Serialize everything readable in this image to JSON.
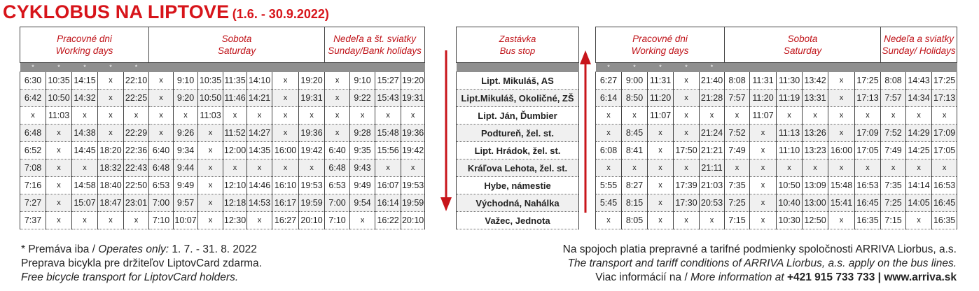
{
  "title": {
    "main": "CYKLOBUS NA LIPTOVE",
    "sub": "(1.6. - 30.9.2022)"
  },
  "colors": {
    "accent": "#d7141a",
    "header_bar": "#8f8f8f"
  },
  "left": {
    "groups": [
      {
        "sk": "Pracovné dni",
        "en": "Working days",
        "span": 5
      },
      {
        "sk": "Sobota",
        "en": "Saturday",
        "span": 7
      },
      {
        "sk": "Nedeľa a št. sviatky",
        "en": "Sunday/Bank holidays",
        "span": 4
      }
    ],
    "stars": [
      "*",
      "*",
      "*",
      "*",
      "*",
      "",
      "",
      "",
      "",
      "",
      "",
      "",
      "",
      "",
      "",
      ""
    ],
    "rows": [
      [
        "6:30",
        "10:35",
        "14:15",
        "x",
        "22:10",
        "x",
        "9:10",
        "10:35",
        "11:35",
        "14:10",
        "x",
        "19:20",
        "x",
        "9:10",
        "15:27",
        "19:20"
      ],
      [
        "6:42",
        "10:50",
        "14:32",
        "x",
        "22:25",
        "x",
        "9:20",
        "10:50",
        "11:46",
        "14:21",
        "x",
        "19:31",
        "x",
        "9:22",
        "15:43",
        "19:31"
      ],
      [
        "x",
        "11:03",
        "x",
        "x",
        "x",
        "x",
        "x",
        "11:03",
        "x",
        "x",
        "x",
        "x",
        "x",
        "x",
        "x",
        "x"
      ],
      [
        "6:48",
        "x",
        "14:38",
        "x",
        "22:29",
        "x",
        "9:26",
        "x",
        "11:52",
        "14:27",
        "x",
        "19:36",
        "x",
        "9:28",
        "15:48",
        "19:36"
      ],
      [
        "6:52",
        "x",
        "14:45",
        "18:20",
        "22:36",
        "6:40",
        "9:34",
        "x",
        "12:00",
        "14:35",
        "16:00",
        "19:42",
        "6:40",
        "9:35",
        "15:56",
        "19:42"
      ],
      [
        "7:08",
        "x",
        "x",
        "18:32",
        "22:43",
        "6:48",
        "9:44",
        "x",
        "x",
        "x",
        "x",
        "x",
        "6:48",
        "9:43",
        "x",
        "x"
      ],
      [
        "7:16",
        "x",
        "14:58",
        "18:40",
        "22:50",
        "6:53",
        "9:49",
        "x",
        "12:10",
        "14:46",
        "16:10",
        "19:53",
        "6:53",
        "9:49",
        "16:07",
        "19:53"
      ],
      [
        "7:27",
        "x",
        "15:07",
        "18:47",
        "23:01",
        "7:00",
        "9:57",
        "x",
        "12:18",
        "14:53",
        "16:17",
        "19:59",
        "7:00",
        "9:54",
        "16:14",
        "19:59"
      ],
      [
        "7:37",
        "x",
        "x",
        "x",
        "x",
        "7:10",
        "10:07",
        "x",
        "12:30",
        "x",
        "16:27",
        "20:10",
        "7:10",
        "x",
        "16:22",
        "20:10"
      ]
    ]
  },
  "stops": {
    "header_sk": "Zastávka",
    "header_en": "Bus stop",
    "names": [
      "Lipt. Mikuláš, AS",
      "Lipt.Mikuláš, Okoličné, ZŠ",
      "Lipt. Ján, Ďumbier",
      "Podtureň, žel. st.",
      "Lipt. Hrádok, žel. st.",
      "Kráľova Lehota, žel. st.",
      "Hybe, námestie",
      "Východná, Nahálka",
      "Važec, Jednota"
    ]
  },
  "right": {
    "groups": [
      {
        "sk": "Pracovné dni",
        "en": "Working days",
        "span": 5
      },
      {
        "sk": "Sobota",
        "en": "Saturday",
        "span": 6
      },
      {
        "sk": "Nedeľa a sviatky",
        "en": "Sunday/ Holidays",
        "span": 3
      }
    ],
    "stars": [
      "*",
      "*",
      "*",
      "*",
      "*",
      "",
      "",
      "",
      "",
      "",
      "",
      "",
      "",
      ""
    ],
    "rows": [
      [
        "6:27",
        "9:00",
        "11:31",
        "x",
        "21:40",
        "8:08",
        "11:31",
        "11:30",
        "13:42",
        "x",
        "17:25",
        "8:08",
        "14:43",
        "17:25"
      ],
      [
        "6:14",
        "8:50",
        "11:20",
        "x",
        "21:28",
        "7:57",
        "11:20",
        "11:19",
        "13:31",
        "x",
        "17:13",
        "7:57",
        "14:34",
        "17:13"
      ],
      [
        "x",
        "x",
        "11:07",
        "x",
        "x",
        "x",
        "11:07",
        "x",
        "x",
        "x",
        "x",
        "x",
        "x",
        "x"
      ],
      [
        "x",
        "8:45",
        "x",
        "x",
        "21:24",
        "7:52",
        "x",
        "11:13",
        "13:26",
        "x",
        "17:09",
        "7:52",
        "14:29",
        "17:09"
      ],
      [
        "6:08",
        "8:41",
        "x",
        "17:50",
        "21:21",
        "7:49",
        "x",
        "11:10",
        "13:23",
        "16:00",
        "17:05",
        "7:49",
        "14:25",
        "17:05"
      ],
      [
        "x",
        "x",
        "x",
        "x",
        "21:11",
        "x",
        "x",
        "x",
        "x",
        "x",
        "x",
        "x",
        "x",
        "x"
      ],
      [
        "5:55",
        "8:27",
        "x",
        "17:39",
        "21:03",
        "7:35",
        "x",
        "10:50",
        "13:09",
        "15:48",
        "16:53",
        "7:35",
        "14:14",
        "16:53"
      ],
      [
        "5:45",
        "8:15",
        "x",
        "17:30",
        "20:53",
        "7:25",
        "x",
        "10:40",
        "13:00",
        "15:41",
        "16:45",
        "7:25",
        "14:05",
        "16:45"
      ],
      [
        "x",
        "8:05",
        "x",
        "x",
        "x",
        "7:15",
        "x",
        "10:30",
        "12:50",
        "x",
        "16:35",
        "7:15",
        "x",
        "16:35"
      ]
    ]
  },
  "footer_left": {
    "line1_sk": "* Premáva iba / ",
    "line1_en": "Operates only:",
    "line1_dates": " 1. 7. - 31. 8. 2022",
    "line2": "Preprava bicykla pre držiteľov LiptovCard zdarma.",
    "line3": "Free bicycle transport for LiptovCard holders."
  },
  "footer_right": {
    "line1": "Na spojoch platia prepravné a tarifné podmienky spoločnosti ARRIVA Liorbus, a.s.",
    "line2": "The transport and tariff conditions of ARRIVA Liorbus, a.s. apply on the bus lines.",
    "line3_sk": "Viac informácií na / ",
    "line3_en": "More information at ",
    "phone": "+421 915 733 733",
    "sep": " | ",
    "web": "www.arriva.sk"
  }
}
